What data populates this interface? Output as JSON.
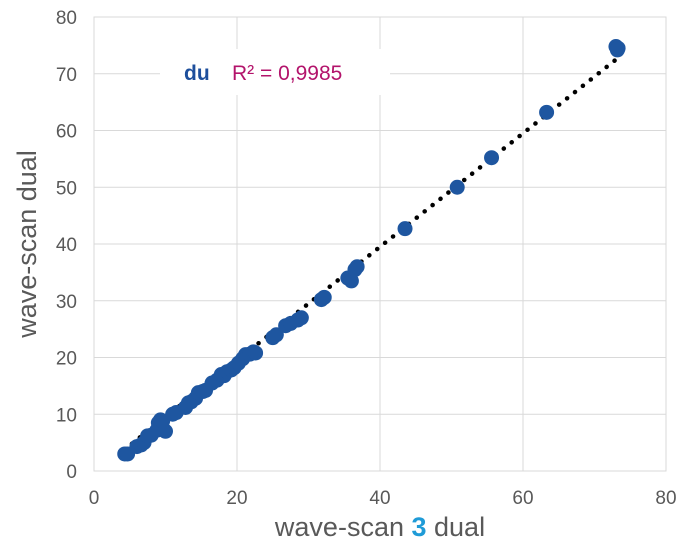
{
  "chart_data": {
    "type": "scatter",
    "title": "",
    "xlabel": {
      "before": "wave-scan ",
      "highlight": "3",
      "after": " dual"
    },
    "ylabel": "wave-scan dual",
    "xlim": [
      0,
      80
    ],
    "ylim": [
      0,
      80
    ],
    "xticks": [
      "0",
      "20",
      "40",
      "60",
      "80"
    ],
    "yticks": [
      "0",
      "10",
      "20",
      "30",
      "40",
      "50",
      "60",
      "70",
      "80"
    ],
    "grid": true,
    "legend": {
      "series_label": "du",
      "r2_text": "R² = 0,9985",
      "placement": "top-left"
    },
    "colors": {
      "marker": "#1e56a0",
      "trendline": "#000000",
      "r2_text": "#b3136b",
      "highlight": "#1f9bd7",
      "grid": "#d9d9d9",
      "axis_text": "#595959"
    },
    "trendline": {
      "style": "dotted",
      "x_start": 4.2,
      "x_end": 73.2,
      "slope": 1.0,
      "intercept": -0.5
    },
    "series": [
      {
        "name": "du",
        "points": [
          [
            4.3,
            3.0
          ],
          [
            4.7,
            3.0
          ],
          [
            6.0,
            4.3
          ],
          [
            6.6,
            4.6
          ],
          [
            7.0,
            5.0
          ],
          [
            7.5,
            6.2
          ],
          [
            8.0,
            6.3
          ],
          [
            8.8,
            7.2
          ],
          [
            9.0,
            8.5
          ],
          [
            9.3,
            9.0
          ],
          [
            9.6,
            8.8
          ],
          [
            10.0,
            7.0
          ],
          [
            11.0,
            10.0
          ],
          [
            11.5,
            10.3
          ],
          [
            12.8,
            11.2
          ],
          [
            13.2,
            12.0
          ],
          [
            13.6,
            12.2
          ],
          [
            14.2,
            12.8
          ],
          [
            14.6,
            13.8
          ],
          [
            15.2,
            14.0
          ],
          [
            15.6,
            14.2
          ],
          [
            16.5,
            15.5
          ],
          [
            17.2,
            16.0
          ],
          [
            17.8,
            17.0
          ],
          [
            18.2,
            16.8
          ],
          [
            18.6,
            17.5
          ],
          [
            19.2,
            17.8
          ],
          [
            19.6,
            18.2
          ],
          [
            20.2,
            19.0
          ],
          [
            20.8,
            19.8
          ],
          [
            21.2,
            20.5
          ],
          [
            21.8,
            20.6
          ],
          [
            22.3,
            21.0
          ],
          [
            22.6,
            20.8
          ],
          [
            25.0,
            23.5
          ],
          [
            25.5,
            24.0
          ],
          [
            26.8,
            25.6
          ],
          [
            27.5,
            26.0
          ],
          [
            28.5,
            26.6
          ],
          [
            29.0,
            27.0
          ],
          [
            31.8,
            30.2
          ],
          [
            32.2,
            30.6
          ],
          [
            35.5,
            34.0
          ],
          [
            36.0,
            33.5
          ],
          [
            36.5,
            35.5
          ],
          [
            36.8,
            36.0
          ],
          [
            43.5,
            42.7
          ],
          [
            50.8,
            50.0
          ],
          [
            55.6,
            55.2
          ],
          [
            63.3,
            63.2
          ],
          [
            73.0,
            74.8
          ],
          [
            73.2,
            74.2
          ],
          [
            73.3,
            74.5
          ]
        ]
      }
    ]
  }
}
